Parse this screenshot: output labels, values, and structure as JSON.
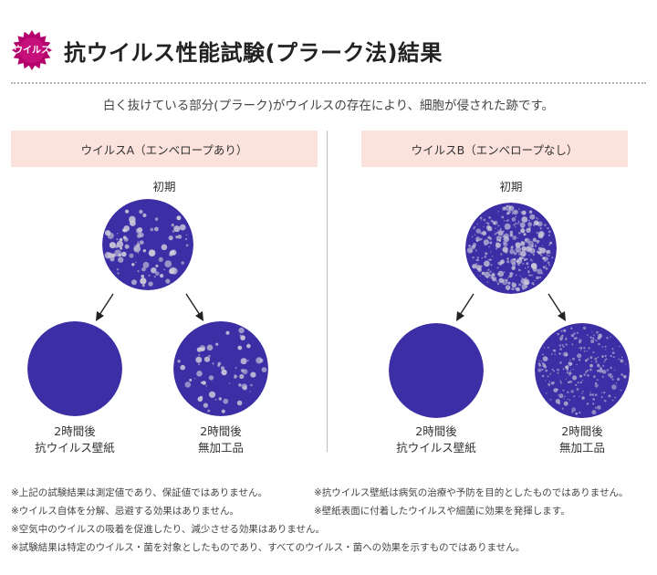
{
  "header": {
    "badge_text": "ウイルス",
    "title": "抗ウイルス性能試験(プラーク法)結果",
    "icon": "virus-badge-icon",
    "badge_color": "#b4006b"
  },
  "subtitle": "白く抜けている部分(プラーク)がウイルスの存在により、細胞が侵された跡です。",
  "panels": [
    {
      "label": "ウイルスA（エンベロープあり）",
      "initial_label": "初期",
      "result_left": {
        "line1": "2時間後",
        "line2": "抗ウイルス壁紙"
      },
      "result_right": {
        "line1": "2時間後",
        "line2": "無加工品"
      }
    },
    {
      "label": "ウイルスB（エンベロープなし）",
      "initial_label": "初期",
      "result_left": {
        "line1": "2時間後",
        "line2": "抗ウイルス壁紙"
      },
      "result_right": {
        "line1": "2時間後",
        "line2": "無加工品"
      }
    }
  ],
  "colors": {
    "dish": "#3c2fa6",
    "plaque": "#cfcbd9",
    "panel_label_bg": "#fbe2dc"
  },
  "notes": {
    "n1": "※上記の試験結果は測定値であり、保証値ではありません。",
    "n2": "※抗ウイルス壁紙は病気の治療や予防を目的としたものではありません。",
    "n3": "※ウイルス自体を分解、忌避する効果はありません。",
    "n4": "※壁紙表面に付着したウイルスや細菌に効果を発揮します。",
    "n5": "※空気中のウイルスの吸着を促進したり、減少させる効果はありません。",
    "n6": "※試験結果は特定のウイルス・菌を対象としたものであり、すべてのウイルス・菌への効果を示すものではありません。"
  }
}
